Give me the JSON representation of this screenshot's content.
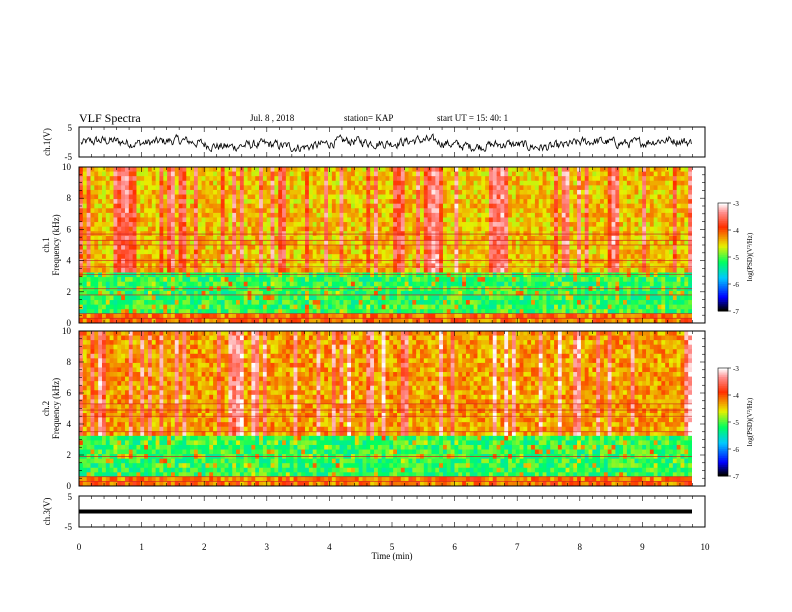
{
  "header": {
    "title": "VLF Spectra",
    "date": "Jul. 8 , 2018",
    "station": "station= KAP",
    "start": "start UT = 15: 40: 1"
  },
  "chart_data": [
    {
      "type": "line",
      "ylabel": "ch.1(V)",
      "ylim": [
        -5,
        5
      ],
      "yticks": [
        "5",
        "-5"
      ],
      "xlim": [
        0,
        10
      ],
      "description_source": "waveform trace, approx 0 to 9.8 min"
    },
    {
      "type": "heatmap",
      "ylabel": "ch.1\nFrequency (kHz)",
      "ylabel_top": "ch.1",
      "ylabel_bottom": "Frequency (kHz)",
      "ylim": [
        0,
        10
      ],
      "yticks": [
        "0",
        "2",
        "4",
        "6",
        "8",
        "10"
      ],
      "xlim": [
        0,
        10
      ],
      "colorbar": {
        "label": "log(PSD)(V²/Hz)",
        "range": [
          -7,
          -3
        ],
        "ticks": [
          "-3",
          "-4",
          "-5",
          "-6",
          "-7"
        ]
      },
      "horizontal_lines_khz": [
        0.3,
        0.6,
        1.8,
        2.2,
        3.1,
        3.6,
        4.0,
        5.0,
        5.3,
        5.7
      ]
    },
    {
      "type": "heatmap",
      "ylabel_top": "ch.2",
      "ylabel_bottom": "Frequency (kHz)",
      "ylim": [
        0,
        10
      ],
      "yticks": [
        "0",
        "2",
        "4",
        "6",
        "8",
        "10"
      ],
      "xlim": [
        0,
        10
      ],
      "colorbar": {
        "label": "log(PSD)(V²/Hz)",
        "range": [
          -7,
          -3
        ],
        "ticks": [
          "-3",
          "-4",
          "-5",
          "-6",
          "-7"
        ]
      },
      "horizontal_lines_khz": [
        0.3,
        0.6,
        1.9,
        3.5,
        4.5,
        4.9,
        5.3
      ]
    },
    {
      "type": "line",
      "ylabel": "ch.3(V)",
      "ylim": [
        -5,
        5
      ],
      "yticks": [
        "5",
        "-5"
      ],
      "level": 0,
      "xlabel": "Time (min)",
      "xlim": [
        0,
        10
      ],
      "xticks": [
        "0",
        "1",
        "2",
        "3",
        "4",
        "5",
        "6",
        "7",
        "8",
        "9",
        "10"
      ]
    }
  ]
}
